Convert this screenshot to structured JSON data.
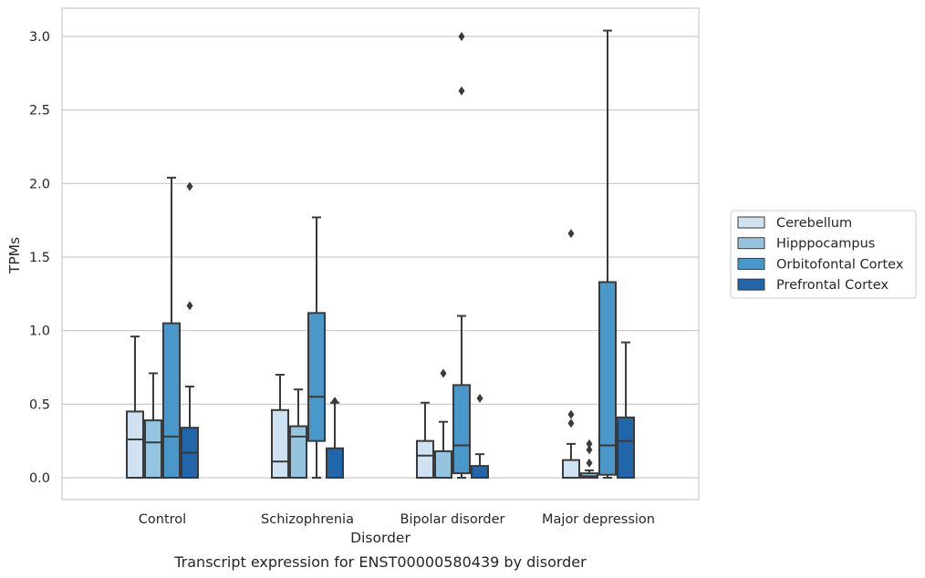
{
  "chart_data": {
    "type": "box",
    "title": "",
    "caption": "Transcript expression for ENST00000580439 by disorder",
    "xlabel": "Disorder",
    "ylabel": "TPMs",
    "ylim": [
      -0.15,
      3.2
    ],
    "yticks": [
      "0.0",
      "0.5",
      "1.0",
      "1.5",
      "2.0",
      "2.5",
      "3.0"
    ],
    "grid": "horizontal",
    "legend_position": "right",
    "categories": [
      "Control",
      "Schizophrenia",
      "Bipolar disorder",
      "Major depression"
    ],
    "series": [
      {
        "name": "Cerebellum",
        "color": "#d0e1f2",
        "boxes": [
          {
            "whislo": 0.0,
            "q1": 0.0,
            "med": 0.26,
            "q3": 0.45,
            "whishi": 0.96,
            "fliers": []
          },
          {
            "whislo": 0.0,
            "q1": 0.0,
            "med": 0.11,
            "q3": 0.46,
            "whishi": 0.7,
            "fliers": []
          },
          {
            "whislo": 0.0,
            "q1": 0.0,
            "med": 0.15,
            "q3": 0.25,
            "whishi": 0.51,
            "fliers": []
          },
          {
            "whislo": 0.0,
            "q1": 0.0,
            "med": 0.0,
            "q3": 0.12,
            "whishi": 0.23,
            "fliers": [
              0.37,
              0.43,
              1.66
            ]
          }
        ]
      },
      {
        "name": "Hipppocampus",
        "color": "#94c4df",
        "boxes": [
          {
            "whislo": 0.0,
            "q1": 0.0,
            "med": 0.24,
            "q3": 0.39,
            "whishi": 0.71,
            "fliers": []
          },
          {
            "whislo": 0.0,
            "q1": 0.0,
            "med": 0.28,
            "q3": 0.35,
            "whishi": 0.6,
            "fliers": []
          },
          {
            "whislo": 0.0,
            "q1": 0.0,
            "med": 0.0,
            "q3": 0.18,
            "whishi": 0.38,
            "fliers": [
              0.71
            ]
          },
          {
            "whislo": 0.0,
            "q1": 0.0,
            "med": 0.01,
            "q3": 0.03,
            "whishi": 0.05,
            "fliers": [
              0.1,
              0.19,
              0.23
            ]
          }
        ]
      },
      {
        "name": "Orbitofontal Cortex",
        "color": "#4a98c9",
        "boxes": [
          {
            "whislo": 0.0,
            "q1": 0.0,
            "med": 0.28,
            "q3": 1.05,
            "whishi": 2.04,
            "fliers": []
          },
          {
            "whislo": 0.0,
            "q1": 0.25,
            "med": 0.55,
            "q3": 1.12,
            "whishi": 1.77,
            "fliers": []
          },
          {
            "whislo": 0.0,
            "q1": 0.03,
            "med": 0.22,
            "q3": 0.63,
            "whishi": 1.1,
            "fliers": [
              2.63,
              3.0
            ]
          },
          {
            "whislo": 0.0,
            "q1": 0.02,
            "med": 0.22,
            "q3": 1.33,
            "whishi": 3.04,
            "fliers": []
          }
        ]
      },
      {
        "name": "Prefrontal Cortex",
        "color": "#2165ab",
        "boxes": [
          {
            "whislo": 0.0,
            "q1": 0.0,
            "med": 0.17,
            "q3": 0.34,
            "whishi": 0.62,
            "fliers": [
              1.17,
              1.98
            ]
          },
          {
            "whislo": 0.0,
            "q1": 0.0,
            "med": 0.0,
            "q3": 0.2,
            "whishi": 0.51,
            "fliers": [
              0.52
            ]
          },
          {
            "whislo": 0.0,
            "q1": 0.0,
            "med": 0.0,
            "q3": 0.08,
            "whishi": 0.16,
            "fliers": [
              0.54
            ]
          },
          {
            "whislo": 0.0,
            "q1": 0.0,
            "med": 0.25,
            "q3": 0.41,
            "whishi": 0.92,
            "fliers": []
          }
        ]
      }
    ]
  }
}
